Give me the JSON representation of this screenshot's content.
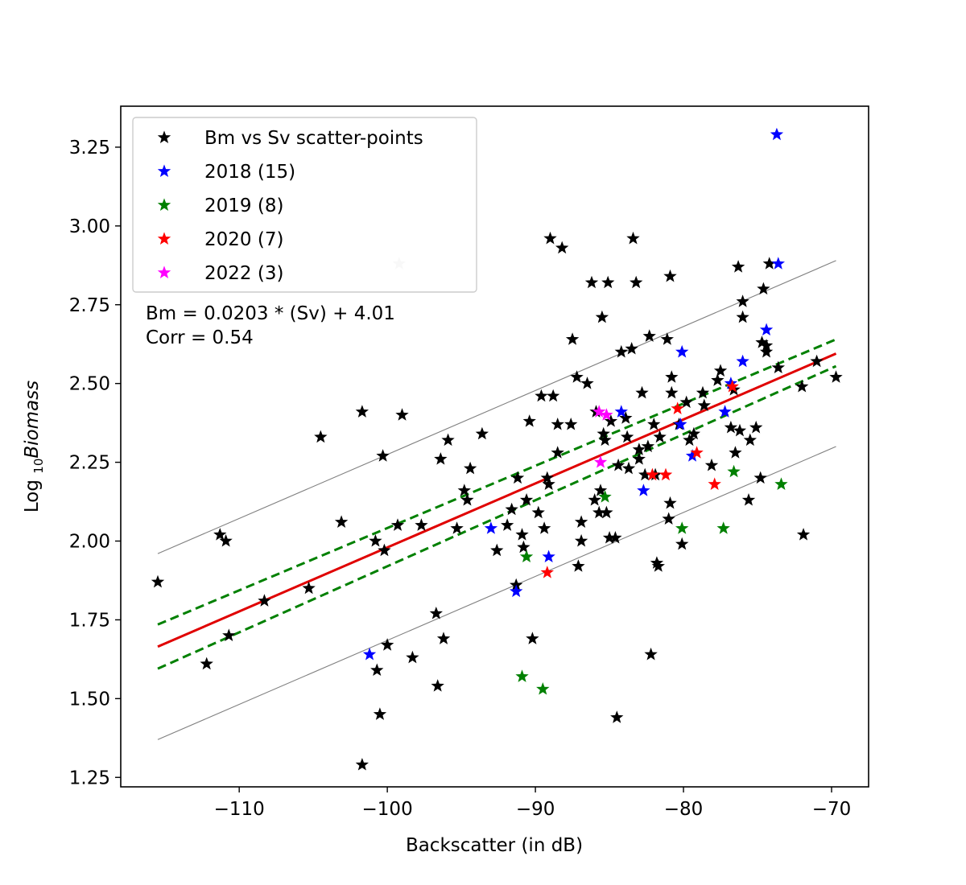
{
  "chart_data": {
    "type": "scatter",
    "title": "",
    "xlabel": "Backscatter (in dB)",
    "ylabel_prefix": "Log ",
    "ylabel_sub": "10",
    "ylabel_italic": "Biomass",
    "xlim": [
      -118,
      -67.5
    ],
    "ylim": [
      1.22,
      3.38
    ],
    "xticks": [
      -110,
      -100,
      -90,
      -80,
      -70
    ],
    "xtick_labels": [
      "−110",
      "−100",
      "−90",
      "−80",
      "−70"
    ],
    "yticks": [
      1.25,
      1.5,
      1.75,
      2.0,
      2.25,
      2.5,
      2.75,
      3.0,
      3.25
    ],
    "ytick_labels": [
      "1.25",
      "1.50",
      "1.75",
      "2.00",
      "2.25",
      "2.50",
      "2.75",
      "3.00",
      "3.25"
    ],
    "grid": false,
    "legend_position": "top-left",
    "annotations": [
      "Bm = 0.0203 * (Sv) + 4.01",
      "Corr = 0.54"
    ],
    "series": [
      {
        "name": "Bm vs Sv scatter-points",
        "color": "#000000",
        "marker": "star",
        "points": [
          [
            -115.5,
            1.87
          ],
          [
            -112.2,
            1.61
          ],
          [
            -111.3,
            2.02
          ],
          [
            -110.9,
            2.0
          ],
          [
            -110.7,
            1.7
          ],
          [
            -108.3,
            1.81
          ],
          [
            -105.3,
            1.85
          ],
          [
            -104.5,
            2.33
          ],
          [
            -103.1,
            2.06
          ],
          [
            -101.7,
            2.41
          ],
          [
            -101.7,
            1.29
          ],
          [
            -100.8,
            2.0
          ],
          [
            -100.7,
            1.59
          ],
          [
            -100.5,
            1.45
          ],
          [
            -100.3,
            2.27
          ],
          [
            -100.2,
            1.97
          ],
          [
            -100.0,
            1.67
          ],
          [
            -99.3,
            2.05
          ],
          [
            -99.0,
            2.4
          ],
          [
            -98.3,
            1.63
          ],
          [
            -97.7,
            2.05
          ],
          [
            -96.7,
            1.77
          ],
          [
            -96.6,
            1.54
          ],
          [
            -96.4,
            2.26
          ],
          [
            -96.2,
            1.69
          ],
          [
            -95.9,
            2.32
          ],
          [
            -95.3,
            2.04
          ],
          [
            -94.8,
            2.16
          ],
          [
            -94.6,
            2.13
          ],
          [
            -94.4,
            2.23
          ],
          [
            -93.6,
            2.34
          ],
          [
            -92.6,
            1.97
          ],
          [
            -91.9,
            2.05
          ],
          [
            -91.6,
            2.1
          ],
          [
            -91.3,
            1.86
          ],
          [
            -91.2,
            2.2
          ],
          [
            -90.9,
            2.02
          ],
          [
            -90.8,
            1.98
          ],
          [
            -90.6,
            2.13
          ],
          [
            -90.4,
            2.38
          ],
          [
            -90.2,
            1.69
          ],
          [
            -89.8,
            2.09
          ],
          [
            -89.6,
            2.46
          ],
          [
            -89.4,
            2.04
          ],
          [
            -89.2,
            2.2
          ],
          [
            -89.1,
            2.18
          ],
          [
            -89.0,
            2.96
          ],
          [
            -88.8,
            2.46
          ],
          [
            -88.5,
            2.28
          ],
          [
            -88.5,
            2.37
          ],
          [
            -88.2,
            2.93
          ],
          [
            -87.6,
            2.37
          ],
          [
            -87.5,
            2.64
          ],
          [
            -87.2,
            2.52
          ],
          [
            -87.1,
            1.92
          ],
          [
            -86.9,
            2.06
          ],
          [
            -86.9,
            2.0
          ],
          [
            -86.5,
            2.5
          ],
          [
            -86.2,
            2.82
          ],
          [
            -86.0,
            2.13
          ],
          [
            -85.9,
            2.41
          ],
          [
            -85.7,
            2.09
          ],
          [
            -85.6,
            2.16
          ],
          [
            -85.5,
            2.71
          ],
          [
            -85.4,
            2.34
          ],
          [
            -85.3,
            2.32
          ],
          [
            -85.2,
            2.09
          ],
          [
            -85.1,
            2.82
          ],
          [
            -85.0,
            2.01
          ],
          [
            -84.9,
            2.38
          ],
          [
            -84.6,
            2.01
          ],
          [
            -84.5,
            1.44
          ],
          [
            -84.4,
            2.24
          ],
          [
            -84.2,
            2.6
          ],
          [
            -83.9,
            2.39
          ],
          [
            -83.8,
            2.33
          ],
          [
            -83.7,
            2.23
          ],
          [
            -83.5,
            2.61
          ],
          [
            -83.4,
            2.96
          ],
          [
            -83.2,
            2.82
          ],
          [
            -83.0,
            2.29
          ],
          [
            -83.0,
            2.26
          ],
          [
            -82.8,
            2.47
          ],
          [
            -82.6,
            2.21
          ],
          [
            -82.4,
            2.3
          ],
          [
            -82.3,
            2.65
          ],
          [
            -82.2,
            1.64
          ],
          [
            -82.0,
            2.37
          ],
          [
            -81.9,
            2.21
          ],
          [
            -81.8,
            1.93
          ],
          [
            -81.7,
            1.92
          ],
          [
            -81.6,
            2.33
          ],
          [
            -81.1,
            2.64
          ],
          [
            -81.0,
            2.07
          ],
          [
            -80.9,
            2.12
          ],
          [
            -80.9,
            2.84
          ],
          [
            -80.8,
            2.52
          ],
          [
            -80.8,
            2.47
          ],
          [
            -80.3,
            2.37
          ],
          [
            -80.1,
            1.99
          ],
          [
            -79.8,
            2.44
          ],
          [
            -79.6,
            2.32
          ],
          [
            -79.3,
            2.34
          ],
          [
            -78.7,
            2.47
          ],
          [
            -78.6,
            2.43
          ],
          [
            -78.1,
            2.24
          ],
          [
            -77.7,
            2.51
          ],
          [
            -77.5,
            2.54
          ],
          [
            -76.8,
            2.36
          ],
          [
            -76.6,
            2.48
          ],
          [
            -76.5,
            2.28
          ],
          [
            -76.3,
            2.87
          ],
          [
            -76.2,
            2.35
          ],
          [
            -76.0,
            2.76
          ],
          [
            -76.0,
            2.71
          ],
          [
            -75.6,
            2.13
          ],
          [
            -75.5,
            2.32
          ],
          [
            -75.1,
            2.36
          ],
          [
            -74.8,
            2.2
          ],
          [
            -74.7,
            2.63
          ],
          [
            -74.6,
            2.8
          ],
          [
            -74.4,
            2.62
          ],
          [
            -74.4,
            2.6
          ],
          [
            -74.2,
            2.88
          ],
          [
            -73.6,
            2.55
          ],
          [
            -72.0,
            2.49
          ],
          [
            -71.9,
            2.02
          ],
          [
            -71.0,
            2.57
          ],
          [
            -69.7,
            2.52
          ]
        ]
      },
      {
        "name": "2018 (15)",
        "color": "#0000ff",
        "marker": "star",
        "points": [
          [
            -101.2,
            1.64
          ],
          [
            -93.0,
            2.04
          ],
          [
            -91.3,
            1.84
          ],
          [
            -89.1,
            1.95
          ],
          [
            -84.2,
            2.41
          ],
          [
            -82.7,
            2.16
          ],
          [
            -80.2,
            2.37
          ],
          [
            -80.1,
            2.6
          ],
          [
            -79.4,
            2.27
          ],
          [
            -77.2,
            2.41
          ],
          [
            -76.8,
            2.5
          ],
          [
            -76.0,
            2.57
          ],
          [
            -74.4,
            2.67
          ],
          [
            -73.6,
            2.88
          ],
          [
            -73.7,
            3.29
          ]
        ]
      },
      {
        "name": "2019 (8)",
        "color": "#008000",
        "marker": "star",
        "points": [
          [
            -90.9,
            1.57
          ],
          [
            -90.6,
            1.95
          ],
          [
            -89.5,
            1.53
          ],
          [
            -85.3,
            2.14
          ],
          [
            -80.1,
            2.04
          ],
          [
            -77.3,
            2.04
          ],
          [
            -76.6,
            2.22
          ],
          [
            -73.4,
            2.18
          ]
        ]
      },
      {
        "name": "2020 (7)",
        "color": "#ff0000",
        "marker": "star",
        "points": [
          [
            -89.2,
            1.9
          ],
          [
            -82.1,
            2.21
          ],
          [
            -81.2,
            2.21
          ],
          [
            -80.4,
            2.42
          ],
          [
            -79.1,
            2.28
          ],
          [
            -77.9,
            2.18
          ],
          [
            -76.7,
            2.49
          ]
        ]
      },
      {
        "name": "2022 (3)",
        "color": "#ff00ff",
        "marker": "star",
        "points": [
          [
            -85.7,
            2.41
          ],
          [
            -85.2,
            2.4
          ],
          [
            -85.6,
            2.25
          ]
        ]
      },
      {
        "name": "",
        "color": "#cccccc",
        "marker": "star",
        "points": [
          [
            -99.2,
            2.88
          ]
        ]
      }
    ],
    "lines": [
      {
        "role": "fit",
        "color": "#e00000",
        "style": "solid",
        "points": [
          [
            -115.5,
            1.665
          ],
          [
            -69.7,
            2.595
          ]
        ]
      },
      {
        "role": "ci-upper",
        "color": "#008000",
        "style": "dashed",
        "points": [
          [
            -115.5,
            1.735
          ],
          [
            -69.7,
            2.64
          ]
        ]
      },
      {
        "role": "ci-lower",
        "color": "#008000",
        "style": "dashed",
        "points": [
          [
            -115.5,
            1.595
          ],
          [
            -69.7,
            2.555
          ]
        ]
      },
      {
        "role": "pi-upper",
        "color": "#808080",
        "style": "thin",
        "points": [
          [
            -115.5,
            1.96
          ],
          [
            -69.7,
            2.89
          ]
        ]
      },
      {
        "role": "pi-lower",
        "color": "#808080",
        "style": "thin",
        "points": [
          [
            -115.5,
            1.37
          ],
          [
            -69.7,
            2.3
          ]
        ]
      }
    ]
  }
}
